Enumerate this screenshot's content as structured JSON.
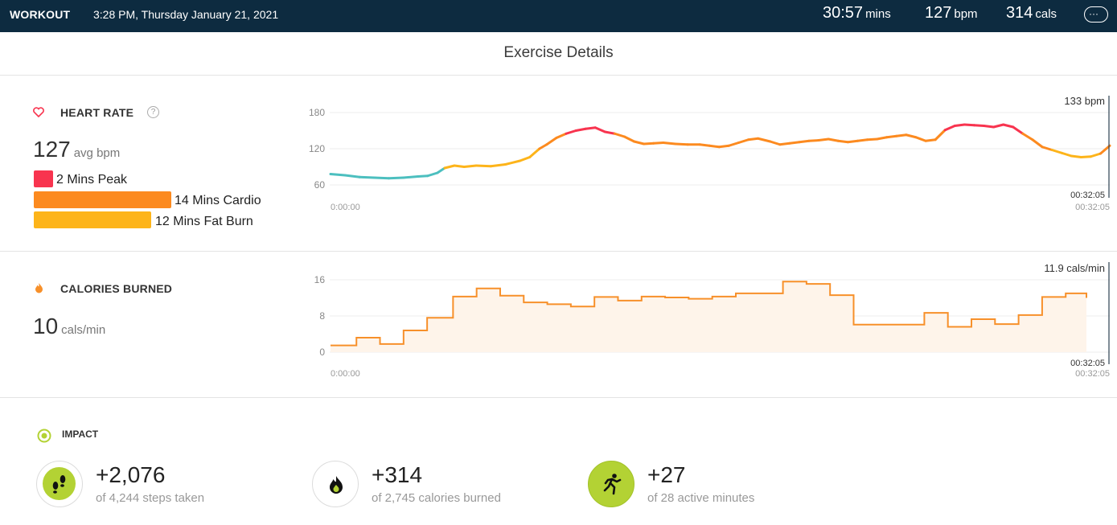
{
  "topbar": {
    "title": "WORKOUT",
    "datetime": "3:28 PM, Thursday January 21, 2021",
    "duration_value": "30:57",
    "duration_unit": "mins",
    "bpm_value": "127",
    "bpm_unit": "bpm",
    "cals_value": "314",
    "cals_unit": "cals",
    "more_label": "···"
  },
  "page": {
    "title": "Exercise Details"
  },
  "heart_rate": {
    "label": "HEART RATE",
    "help": "?",
    "avg_value": "127",
    "avg_unit": "avg bpm",
    "zones": [
      {
        "label": "2 Mins Peak",
        "color": "#f8344f",
        "minutes": 2
      },
      {
        "label": "14 Mins Cardio",
        "color": "#fc8a1f",
        "minutes": 14
      },
      {
        "label": "12 Mins Fat Burn",
        "color": "#fdb41a",
        "minutes": 12
      }
    ],
    "chart": {
      "current_label": "133 bpm",
      "start_time": "0:00:00",
      "end_time_top": "00:32:05",
      "end_time_bottom": "00:32:05",
      "yticks": [
        "180",
        "120",
        "60"
      ]
    }
  },
  "calories": {
    "label": "CALORIES BURNED",
    "value": "10",
    "unit": "cals/min",
    "chart": {
      "current_label": "11.9 cals/min",
      "start_time": "0:00:00",
      "end_time_top": "00:32:05",
      "end_time_bottom": "00:32:05",
      "yticks": [
        "16",
        "8",
        "0"
      ]
    }
  },
  "impact": {
    "label": "IMPACT",
    "items": [
      {
        "value": "+2,076",
        "caption": "of 4,244 steps taken",
        "icon": "footsteps-icon"
      },
      {
        "value": "+314",
        "caption": "of 2,745 calories burned",
        "icon": "flame-icon"
      },
      {
        "value": "+27",
        "caption": "of 28 active minutes",
        "icon": "runner-icon"
      }
    ]
  },
  "colors": {
    "topbar": "#0d2b40",
    "peak": "#f8344f",
    "cardio": "#fc8a1f",
    "fatburn": "#fdb41a",
    "below_zone": "#4cbfbf",
    "calorie_line": "#f7902a",
    "calorie_fill": "#fef4ea",
    "impact_green": "#b3d234"
  },
  "chart_data": [
    {
      "type": "line",
      "title": "HEART RATE",
      "x_unit": "minutes",
      "xlim": [
        0,
        32.08
      ],
      "ylim": [
        50,
        190
      ],
      "yticks": [
        60,
        120,
        180
      ],
      "points": [
        [
          0,
          78
        ],
        [
          0.6,
          76
        ],
        [
          1.2,
          73
        ],
        [
          1.8,
          72
        ],
        [
          2.4,
          71
        ],
        [
          3.0,
          72
        ],
        [
          3.6,
          74
        ],
        [
          4.0,
          75
        ],
        [
          4.4,
          80
        ],
        [
          4.7,
          88
        ],
        [
          5.1,
          92
        ],
        [
          5.5,
          90
        ],
        [
          6.0,
          92
        ],
        [
          6.6,
          91
        ],
        [
          7.2,
          94
        ],
        [
          7.8,
          100
        ],
        [
          8.2,
          106
        ],
        [
          8.6,
          120
        ],
        [
          8.9,
          127
        ],
        [
          9.3,
          138
        ],
        [
          9.7,
          145
        ],
        [
          10.1,
          150
        ],
        [
          10.5,
          153
        ],
        [
          10.9,
          155
        ],
        [
          11.3,
          148
        ],
        [
          11.7,
          145
        ],
        [
          12.1,
          140
        ],
        [
          12.5,
          132
        ],
        [
          12.9,
          128
        ],
        [
          13.3,
          129
        ],
        [
          13.7,
          130
        ],
        [
          14.2,
          128
        ],
        [
          14.7,
          127
        ],
        [
          15.2,
          127
        ],
        [
          15.6,
          125
        ],
        [
          16.0,
          123
        ],
        [
          16.4,
          125
        ],
        [
          16.8,
          130
        ],
        [
          17.2,
          135
        ],
        [
          17.6,
          137
        ],
        [
          18.1,
          132
        ],
        [
          18.5,
          127
        ],
        [
          18.9,
          129
        ],
        [
          19.3,
          131
        ],
        [
          19.7,
          133
        ],
        [
          20.1,
          134
        ],
        [
          20.5,
          136
        ],
        [
          20.9,
          133
        ],
        [
          21.3,
          131
        ],
        [
          21.7,
          133
        ],
        [
          22.1,
          135
        ],
        [
          22.5,
          136
        ],
        [
          22.9,
          139
        ],
        [
          23.3,
          141
        ],
        [
          23.7,
          143
        ],
        [
          24.1,
          139
        ],
        [
          24.5,
          133
        ],
        [
          24.9,
          135
        ],
        [
          25.3,
          151
        ],
        [
          25.7,
          158
        ],
        [
          26.1,
          160
        ],
        [
          26.5,
          159
        ],
        [
          26.9,
          158
        ],
        [
          27.3,
          156
        ],
        [
          27.7,
          160
        ],
        [
          28.1,
          156
        ],
        [
          28.5,
          145
        ],
        [
          28.9,
          135
        ],
        [
          29.3,
          123
        ],
        [
          29.7,
          118
        ],
        [
          30.1,
          113
        ],
        [
          30.5,
          108
        ],
        [
          30.9,
          106
        ],
        [
          31.3,
          107
        ],
        [
          31.7,
          112
        ],
        [
          32.08,
          125
        ]
      ],
      "current_value": 133
    },
    {
      "type": "area",
      "title": "CALORIES BURNED",
      "x_unit": "minutes",
      "xlim": [
        0,
        32.08
      ],
      "ylim": [
        0,
        16
      ],
      "yticks": [
        0,
        8,
        16
      ],
      "step": true,
      "points": [
        [
          0,
          1.5
        ],
        [
          1.1,
          3.2
        ],
        [
          2.1,
          1.8
        ],
        [
          3.1,
          4.8
        ],
        [
          4.1,
          7.6
        ],
        [
          5.2,
          12.3
        ],
        [
          6.2,
          14.1
        ],
        [
          7.2,
          12.5
        ],
        [
          8.2,
          11.0
        ],
        [
          9.2,
          10.6
        ],
        [
          10.2,
          10.1
        ],
        [
          11.2,
          12.2
        ],
        [
          12.2,
          11.4
        ],
        [
          13.2,
          12.3
        ],
        [
          14.2,
          12.1
        ],
        [
          15.2,
          11.8
        ],
        [
          16.2,
          12.3
        ],
        [
          17.2,
          13.0
        ],
        [
          18.2,
          13.0
        ],
        [
          19.2,
          15.6
        ],
        [
          20.2,
          15.1
        ],
        [
          21.2,
          12.6
        ],
        [
          22.2,
          6.1
        ],
        [
          23.2,
          6.1
        ],
        [
          24.2,
          6.1
        ],
        [
          25.2,
          8.7
        ],
        [
          26.2,
          5.6
        ],
        [
          27.2,
          7.3
        ],
        [
          28.2,
          6.2
        ],
        [
          29.2,
          8.2
        ],
        [
          30.2,
          12.2
        ],
        [
          31.2,
          13.0
        ],
        [
          32.08,
          12.0
        ]
      ],
      "current_value": 11.9
    }
  ]
}
